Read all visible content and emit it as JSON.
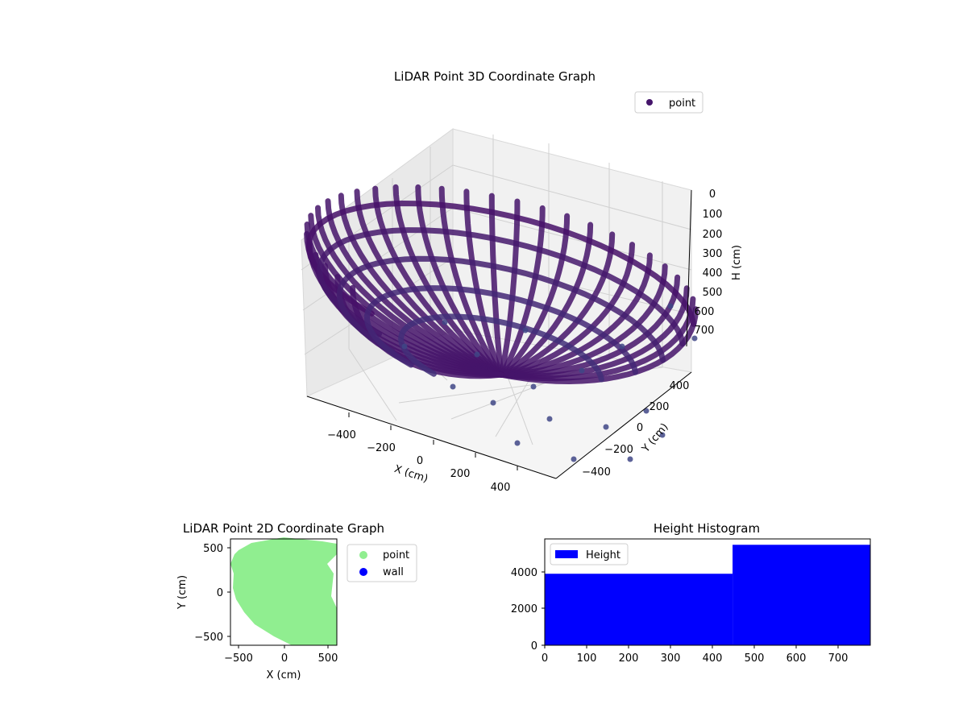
{
  "charts": {
    "scatter3d": {
      "title": "LiDAR Point 3D Coordinate Graph",
      "legend": "point",
      "xlabel": "X (cm)",
      "ylabel": "Y (cm)",
      "zlabel": "H (cm)",
      "x_ticks": [
        "−400",
        "−200",
        "0",
        "200",
        "400"
      ],
      "y_ticks": [
        "−400",
        "−200",
        "0",
        "200",
        "400"
      ],
      "z_ticks": [
        "0",
        "100",
        "200",
        "300",
        "400",
        "500",
        "600",
        "700"
      ]
    },
    "scatter2d": {
      "title": "LiDAR Point 2D Coordinate Graph",
      "legend_point": "point",
      "legend_wall": "wall",
      "xlabel": "X (cm)",
      "ylabel": "Y (cm)",
      "x_ticks": [
        "−500",
        "0",
        "500"
      ],
      "y_ticks": [
        "500",
        "0",
        "−500"
      ]
    },
    "histogram": {
      "title": "Height Histogram",
      "legend": "Height",
      "x_ticks": [
        "0",
        "100",
        "200",
        "300",
        "400",
        "500",
        "600",
        "700"
      ],
      "y_ticks": [
        "0",
        "2000",
        "4000"
      ]
    }
  },
  "colors": {
    "point3d": "#45156b",
    "point3d_low": "#3f4a8a",
    "point2d": "#90ee90",
    "wall": "#0000ff",
    "hist": "#0000ff"
  },
  "chart_data": [
    {
      "type": "scatter",
      "subtype": "3d",
      "title": "LiDAR Point 3D Coordinate Graph",
      "xlabel": "X (cm)",
      "ylabel": "Y (cm)",
      "zlabel": "H (cm)",
      "xlim": [
        -550,
        550
      ],
      "ylim": [
        -550,
        550
      ],
      "zlim": [
        0,
        750
      ],
      "z_inverted": true,
      "legend_position": "top-right",
      "grid": true,
      "series": [
        {
          "name": "point",
          "marker": "circle",
          "color": "#45156b",
          "shape": "hemispherical dome of scan lines"
        }
      ]
    },
    {
      "type": "scatter",
      "title": "LiDAR Point 2D Coordinate Graph",
      "xlabel": "X (cm)",
      "ylabel": "Y (cm)",
      "xlim": [
        -600,
        600
      ],
      "ylim": [
        -600,
        600
      ],
      "legend_position": "outside-right",
      "series": [
        {
          "name": "point",
          "color": "#90ee90",
          "shape": "filled disc of radius about 600 cm"
        },
        {
          "name": "wall",
          "color": "#0000ff",
          "values": []
        }
      ]
    },
    {
      "type": "bar",
      "subtype": "histogram",
      "title": "Height Histogram",
      "xlim": [
        0,
        780
      ],
      "ylim": [
        0,
        5800
      ],
      "legend_position": "top-left",
      "bins": [
        {
          "x0": 0,
          "x1": 450,
          "count": 3900
        },
        {
          "x0": 450,
          "x1": 780,
          "count": 5480
        }
      ],
      "series": [
        {
          "name": "Height",
          "color": "#0000ff"
        }
      ]
    }
  ]
}
